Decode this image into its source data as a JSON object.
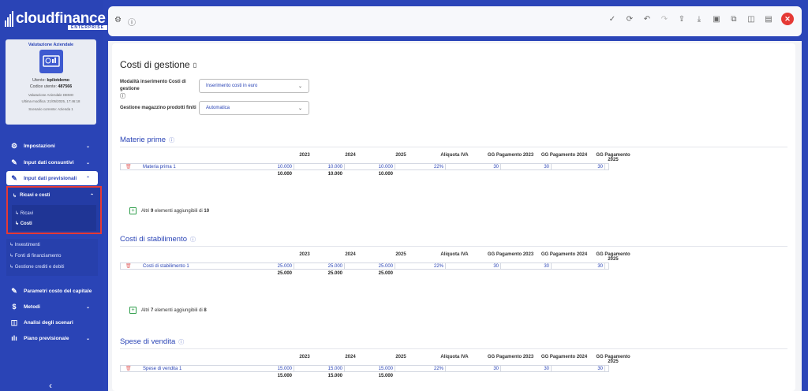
{
  "app": {
    "brand": "cloudfinance",
    "edition": "ENTERPRISE"
  },
  "card": {
    "title": "Valutazione Aziendale",
    "user": "Utente: bpilotdemo",
    "user_label": "Utente:",
    "user_value": "bpilotdemo",
    "code_label": "Codice utente:",
    "code_value": "487566",
    "project": "Valutazione Aziendale DEMO",
    "modified": "Ultima modifica: 21/05/2025, 17:46:18",
    "scenario": "Scenario corrente: Azienda 1"
  },
  "nav": {
    "impostazioni": "Impostazioni",
    "consuntivi": "Input dati consuntivi",
    "previsionali": "Input dati previsionali",
    "ricavi_costi": "Ricavi e costi",
    "ricavi": "Ricavi",
    "costi": "Costi",
    "investimenti": "Investimenti",
    "fonti": "Fonti di finanziamento",
    "crediti": "Gestione crediti e debiti",
    "parametri": "Parametri costo del capitale",
    "metodi": "Metodi",
    "analisi": "Analisi degli scenari",
    "piano": "Piano previsionale"
  },
  "page": {
    "title": "Costi di gestione",
    "field1_label": "Modalità inserimento Costi di gestione",
    "field1_value": "Inserimento costi in euro",
    "field2_label": "Gestione magazzino prodotti finiti",
    "field2_value": "Automatica"
  },
  "columns": [
    "2023",
    "2024",
    "2025",
    "Aliquota IVA",
    "GG Pagamento 2023",
    "GG Pagamento 2024",
    "GG Pagamento 2025"
  ],
  "sections": [
    {
      "title": "Materie prime",
      "row": {
        "name": "Materia prima 1",
        "v2023": "10.000",
        "v2024": "10.000",
        "v2025": "10.000",
        "iva": "22%",
        "gg2023": "30",
        "gg2024": "30",
        "gg2025": "30"
      },
      "totals": {
        "t2023": "10.000",
        "t2024": "10.000",
        "t2025": "10.000"
      },
      "more_prefix": "Altri",
      "more_count": "9",
      "more_mid": "elementi aggiungibili di",
      "more_total": "10"
    },
    {
      "title": "Costi di stabilimento",
      "row": {
        "name": "Costi di stabilimento 1",
        "v2023": "25.000",
        "v2024": "25.000",
        "v2025": "25.000",
        "iva": "22%",
        "gg2023": "30",
        "gg2024": "30",
        "gg2025": "30"
      },
      "totals": {
        "t2023": "25.000",
        "t2024": "25.000",
        "t2025": "25.000"
      },
      "more_prefix": "Altri",
      "more_count": "7",
      "more_mid": "elementi aggiungibili di",
      "more_total": "8"
    },
    {
      "title": "Spese di vendita",
      "row": {
        "name": "Spese di vendita 1",
        "v2023": "15.000",
        "v2024": "15.000",
        "v2025": "15.000",
        "iva": "22%",
        "gg2023": "30",
        "gg2024": "30",
        "gg2025": "30"
      },
      "totals": {
        "t2023": "15.000",
        "t2024": "15.000",
        "t2025": "15.000"
      }
    }
  ],
  "colors": {
    "sidebar": "#2a44b6",
    "accent": "#2a44b6",
    "highlight": "#e53935",
    "close": "#e53935"
  }
}
